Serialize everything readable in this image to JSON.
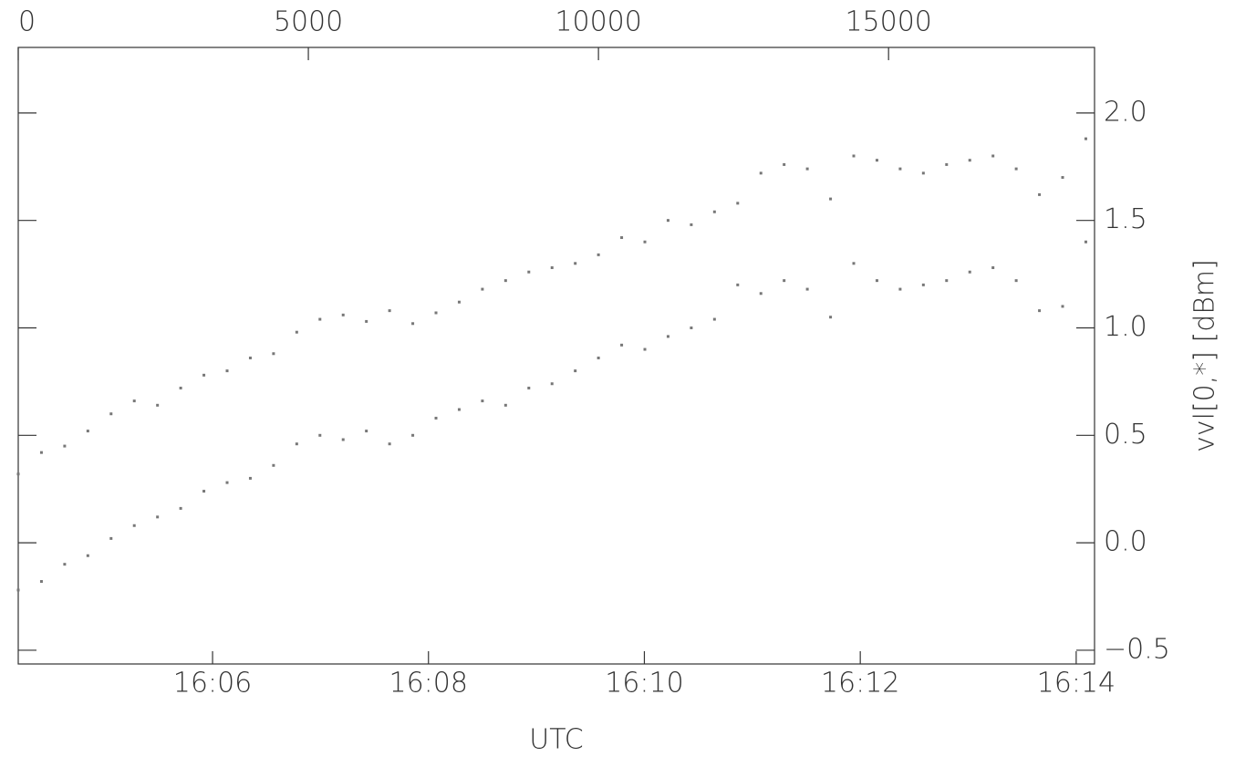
{
  "chart_data": {
    "type": "scatter",
    "xlabel": "UTC",
    "ylabel": "vvl[0,*] [dBm]",
    "x": [
      0,
      400,
      800,
      1200,
      1600,
      2000,
      2400,
      2800,
      3200,
      3600,
      4000,
      4400,
      4800,
      5200,
      5600,
      6000,
      6400,
      6800,
      7200,
      7600,
      8000,
      8400,
      8800,
      9200,
      9600,
      10000,
      10400,
      10800,
      11200,
      11600,
      12000,
      12400,
      12800,
      13200,
      13600,
      14000,
      14400,
      14800,
      15200,
      15600,
      16000,
      16400,
      16800,
      17200,
      17600,
      18000,
      18400
    ],
    "series": [
      {
        "color": "#777777",
        "values": [
          0.32,
          0.42,
          0.45,
          0.52,
          0.6,
          0.66,
          0.64,
          0.72,
          0.78,
          0.8,
          0.86,
          0.88,
          0.98,
          1.04,
          1.06,
          1.03,
          1.08,
          1.02,
          1.07,
          1.12,
          1.18,
          1.22,
          1.26,
          1.28,
          1.3,
          1.34,
          1.42,
          1.4,
          1.5,
          1.48,
          1.54,
          1.58,
          1.72,
          1.76,
          1.74,
          1.6,
          1.8,
          1.78,
          1.74,
          1.72,
          1.76,
          1.78,
          1.8,
          1.74,
          1.62,
          1.7,
          1.88
        ]
      },
      {
        "color": "#777777",
        "values": [
          -0.22,
          -0.18,
          -0.1,
          -0.06,
          0.02,
          0.08,
          0.12,
          0.16,
          0.24,
          0.28,
          0.3,
          0.36,
          0.46,
          0.5,
          0.48,
          0.52,
          0.46,
          0.5,
          0.58,
          0.62,
          0.66,
          0.64,
          0.72,
          0.74,
          0.8,
          0.86,
          0.92,
          0.9,
          0.96,
          1.0,
          1.04,
          1.2,
          1.16,
          1.22,
          1.18,
          1.05,
          1.3,
          1.22,
          1.18,
          1.2,
          1.22,
          1.26,
          1.28,
          1.22,
          1.08,
          1.1,
          1.4
        ]
      }
    ],
    "xlim": [
      0,
      18550
    ],
    "xticks": [
      0,
      5000,
      10000,
      15000
    ],
    "x2lim": [
      964.2,
      974.17
    ],
    "x2ticks": [
      {
        "value": 966,
        "label": "16:06"
      },
      {
        "value": 968,
        "label": "16:08"
      },
      {
        "value": 970,
        "label": "16:10"
      },
      {
        "value": 972,
        "label": "16:12"
      },
      {
        "value": 974,
        "label": "16:14"
      }
    ],
    "ylim": [
      -0.564,
      2.305
    ],
    "yticks": [
      {
        "value": -0.5,
        "label": "−0.5"
      },
      {
        "value": 0,
        "label": "0.0"
      },
      {
        "value": 0.5,
        "label": "0.5"
      },
      {
        "value": 1,
        "label": "1.0"
      },
      {
        "value": 1.5,
        "label": "1.5"
      },
      {
        "value": 2,
        "label": "2.0"
      }
    ]
  }
}
